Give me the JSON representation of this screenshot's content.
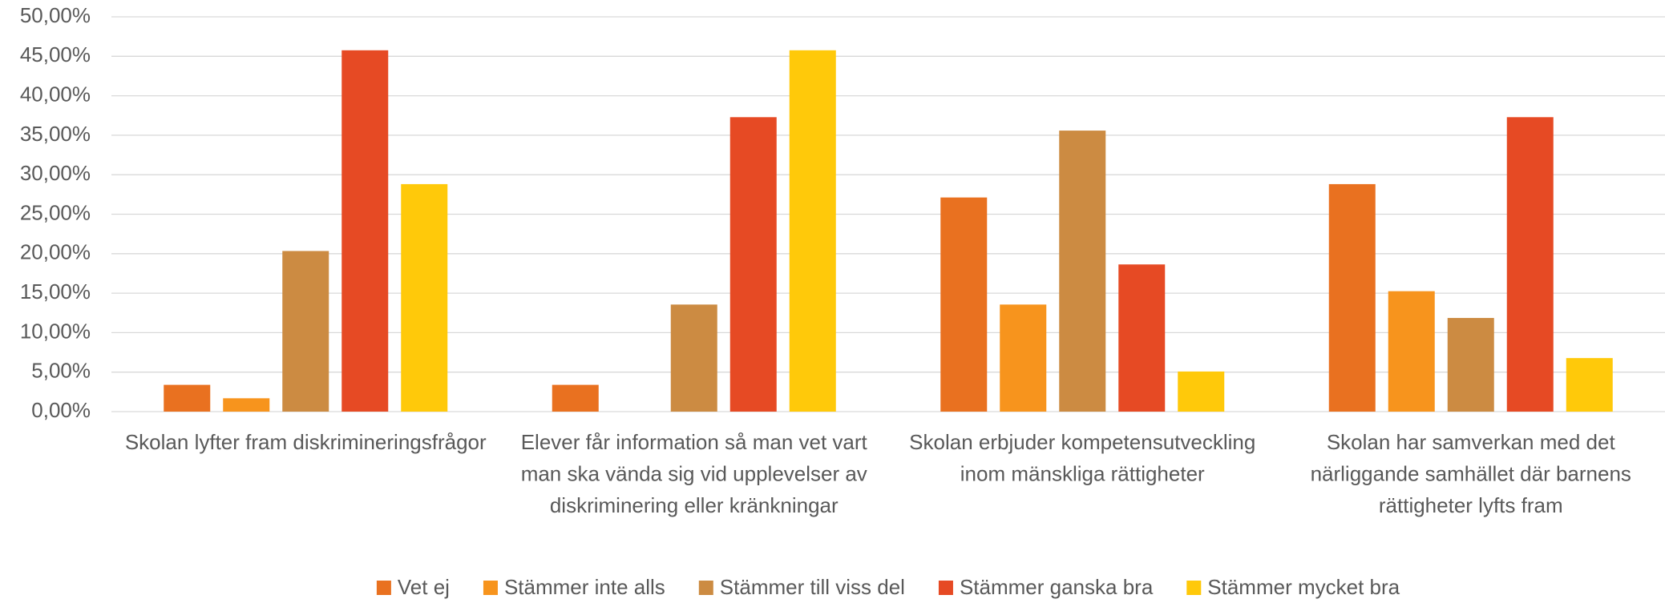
{
  "chart_data": {
    "type": "bar",
    "categories": [
      "Skolan lyfter fram diskrimineringsfrågor",
      "Elever får information så man vet vart man ska vända sig vid upplevelser av diskriminering eller kränkningar",
      "Skolan erbjuder kompetensutveckling inom mänskliga rättigheter",
      "Skolan har samverkan med det närliggande samhället där barnens rättigheter lyfts fram"
    ],
    "series": [
      {
        "name": "Vet ej",
        "color": "#e97120",
        "values": [
          3.39,
          3.39,
          27.12,
          28.81
        ]
      },
      {
        "name": "Stämmer inte alls",
        "color": "#f7941d",
        "values": [
          1.69,
          0,
          13.56,
          15.25
        ]
      },
      {
        "name": "Stämmer till viss del",
        "color": "#cc8b42",
        "values": [
          20.34,
          13.56,
          35.59,
          11.86
        ]
      },
      {
        "name": "Stämmer ganska bra",
        "color": "#e64a24",
        "values": [
          45.76,
          37.29,
          18.64,
          37.29
        ]
      },
      {
        "name": "Stämmer mycket bra",
        "color": "#ffc90a",
        "values": [
          28.81,
          45.76,
          5.08,
          6.78
        ]
      }
    ],
    "ylim": [
      0,
      50
    ],
    "yticks": [
      {
        "value": 0,
        "label": "0,00%"
      },
      {
        "value": 5,
        "label": "5,00%"
      },
      {
        "value": 10,
        "label": "10,00%"
      },
      {
        "value": 15,
        "label": "15,00%"
      },
      {
        "value": 20,
        "label": "20,00%"
      },
      {
        "value": 25,
        "label": "25,00%"
      },
      {
        "value": 30,
        "label": "30,00%"
      },
      {
        "value": 35,
        "label": "35,00%"
      },
      {
        "value": 40,
        "label": "40,00%"
      },
      {
        "value": 45,
        "label": "45,00%"
      },
      {
        "value": 50,
        "label": "50,00%"
      }
    ],
    "grid": true,
    "legend": "bottom"
  }
}
